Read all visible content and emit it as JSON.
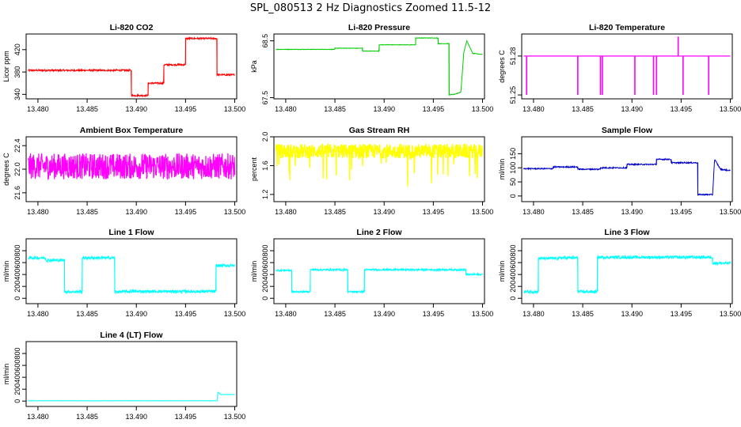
{
  "title": "SPL_080513  2 Hz Diagnostics Zoomed 11.5-12",
  "chart_data": [
    {
      "type": "line",
      "title": "Li-820 CO2",
      "xlabel": "",
      "ylabel": "Licor ppm",
      "color": "#ff0000",
      "xlim": [
        13.4788,
        13.5002
      ],
      "ylim": [
        332,
        448
      ],
      "xticks": [
        13.48,
        13.485,
        13.49,
        13.495,
        13.5
      ],
      "yticks": [
        340,
        380,
        420
      ],
      "noise": 1.5,
      "x": [
        13.479,
        13.4895,
        13.4895,
        13.4912,
        13.4912,
        13.4928,
        13.4928,
        13.495,
        13.495,
        13.4982,
        13.4982,
        13.5
      ],
      "y": [
        383,
        383,
        338,
        338,
        360,
        360,
        393,
        393,
        440,
        440,
        375,
        375
      ]
    },
    {
      "type": "line",
      "title": "Li-820 Pressure",
      "xlabel": "",
      "ylabel": "kPa",
      "color": "#00cc00",
      "xlim": [
        13.4788,
        13.5002
      ],
      "ylim": [
        67.48,
        68.62
      ],
      "xticks": [
        13.48,
        13.485,
        13.49,
        13.495,
        13.5
      ],
      "yticks": [
        67.5,
        68.5
      ],
      "noise": 0.004,
      "x": [
        13.479,
        13.485,
        13.485,
        13.4878,
        13.4878,
        13.4895,
        13.4895,
        13.4932,
        13.4932,
        13.4955,
        13.4955,
        13.4966,
        13.4966,
        13.4972,
        13.4978,
        13.4981,
        13.4984,
        13.499,
        13.5
      ],
      "y": [
        68.35,
        68.35,
        68.37,
        68.37,
        68.32,
        68.32,
        68.43,
        68.43,
        68.55,
        68.55,
        68.45,
        68.45,
        67.55,
        67.56,
        67.6,
        68.3,
        68.5,
        68.28,
        68.26
      ]
    },
    {
      "type": "line",
      "title": "Li-820 Temperature",
      "xlabel": "",
      "ylabel": "degrees C",
      "color": "#ff00ff",
      "xlim": [
        13.4788,
        13.5002
      ],
      "ylim": [
        51.247,
        51.297
      ],
      "xticks": [
        13.48,
        13.485,
        13.49,
        13.495,
        13.5
      ],
      "yticks": [
        51.25,
        51.28
      ],
      "baseline": 51.28,
      "noise": 0,
      "spikes": [
        [
          13.4793,
          51.25
        ],
        [
          13.4845,
          51.25
        ],
        [
          13.4868,
          51.25
        ],
        [
          13.487,
          51.25
        ],
        [
          13.4903,
          51.25
        ],
        [
          13.4922,
          51.25
        ],
        [
          13.4925,
          51.25
        ],
        [
          13.4947,
          51.295
        ],
        [
          13.4952,
          51.25
        ],
        [
          13.4978,
          51.25
        ]
      ]
    },
    {
      "type": "line",
      "title": "Ambient Box Temperature",
      "xlabel": "",
      "ylabel": "degrees C",
      "color": "#ff00ff",
      "xlim": [
        13.4788,
        13.5002
      ],
      "ylim": [
        21.45,
        22.55
      ],
      "xticks": [
        13.48,
        13.485,
        13.49,
        13.495,
        13.5
      ],
      "yticks": [
        21.6,
        22.0,
        22.4
      ],
      "noise": 0.22,
      "x": [
        13.479,
        13.5
      ],
      "y": [
        22.05,
        22.05
      ]
    },
    {
      "type": "line",
      "title": "Gas Stream RH",
      "xlabel": "",
      "ylabel": "percent",
      "color": "#ffff00",
      "xlim": [
        13.4788,
        13.5002
      ],
      "ylim": [
        1.1,
        2.0
      ],
      "xticks": [
        13.48,
        13.485,
        13.49,
        13.495,
        13.5
      ],
      "yticks": [
        1.2,
        1.6,
        2.0
      ],
      "noise": 0.1,
      "dropouts": true,
      "x": [
        13.479,
        13.5
      ],
      "y": [
        1.8,
        1.8
      ]
    },
    {
      "type": "line",
      "title": "Sample Flow",
      "xlabel": "",
      "ylabel": "ml/min",
      "color": "#0000cc",
      "xlim": [
        13.4788,
        13.5002
      ],
      "ylim": [
        -20,
        210
      ],
      "xticks": [
        13.48,
        13.485,
        13.49,
        13.495,
        13.5
      ],
      "yticks": [
        0,
        50,
        100,
        150
      ],
      "noise": 2,
      "x": [
        13.479,
        13.482,
        13.482,
        13.4845,
        13.4845,
        13.4868,
        13.4868,
        13.4895,
        13.4895,
        13.4925,
        13.4925,
        13.494,
        13.494,
        13.4967,
        13.4967,
        13.4982,
        13.4984,
        13.499,
        13.5
      ],
      "y": [
        97,
        97,
        103,
        103,
        95,
        95,
        100,
        100,
        112,
        112,
        130,
        130,
        118,
        118,
        5,
        5,
        130,
        95,
        90
      ]
    },
    {
      "type": "line",
      "title": "Line 1 Flow",
      "xlabel": "",
      "ylabel": "ml/min",
      "color": "#00ffff",
      "xlim": [
        13.4788,
        13.5002
      ],
      "ylim": [
        -90,
        1000
      ],
      "xticks": [
        13.48,
        13.485,
        13.49,
        13.495,
        13.5
      ],
      "yticks": [
        0,
        200,
        400,
        600,
        800
      ],
      "noise": 25,
      "x": [
        13.479,
        13.4808,
        13.4808,
        13.4827,
        13.4827,
        13.4845,
        13.4845,
        13.4878,
        13.4878,
        13.4888,
        13.4888,
        13.4981,
        13.4981,
        13.5
      ],
      "y": [
        680,
        680,
        640,
        640,
        110,
        110,
        680,
        680,
        110,
        110,
        115,
        115,
        550,
        550
      ]
    },
    {
      "type": "line",
      "title": "Line 2 Flow",
      "xlabel": "",
      "ylabel": "ml/min",
      "color": "#00ffff",
      "xlim": [
        13.4788,
        13.5002
      ],
      "ylim": [
        -90,
        1000
      ],
      "xticks": [
        13.48,
        13.485,
        13.49,
        13.495,
        13.5
      ],
      "yticks": [
        0,
        200,
        400,
        600,
        800
      ],
      "noise": 15,
      "x": [
        13.479,
        13.4806,
        13.4806,
        13.4825,
        13.4825,
        13.4863,
        13.4863,
        13.488,
        13.488,
        13.4983,
        13.4983,
        13.5
      ],
      "y": [
        470,
        470,
        110,
        110,
        480,
        480,
        110,
        110,
        480,
        480,
        400,
        400
      ]
    },
    {
      "type": "line",
      "title": "Line 3 Flow",
      "xlabel": "",
      "ylabel": "ml/min",
      "color": "#00ffff",
      "xlim": [
        13.4788,
        13.5002
      ],
      "ylim": [
        -90,
        1000
      ],
      "xticks": [
        13.48,
        13.485,
        13.49,
        13.495,
        13.5
      ],
      "yticks": [
        0,
        200,
        400,
        600,
        800
      ],
      "noise": 25,
      "x": [
        13.479,
        13.4805,
        13.4805,
        13.4827,
        13.4827,
        13.4845,
        13.4845,
        13.4865,
        13.4865,
        13.4982,
        13.4982,
        13.5
      ],
      "y": [
        110,
        110,
        670,
        670,
        680,
        680,
        110,
        110,
        690,
        690,
        590,
        590
      ]
    },
    {
      "type": "line",
      "title": "Line 4 (LT) Flow",
      "xlabel": "",
      "ylabel": "ml/min",
      "color": "#00ffff",
      "xlim": [
        13.4788,
        13.5002
      ],
      "ylim": [
        -90,
        1000
      ],
      "xticks": [
        13.48,
        13.485,
        13.49,
        13.495,
        13.5
      ],
      "yticks": [
        0,
        200,
        400,
        600,
        800
      ],
      "noise": 2,
      "x": [
        13.479,
        13.4982,
        13.4983,
        13.4986,
        13.499,
        13.5
      ],
      "y": [
        5,
        5,
        150,
        110,
        110,
        110
      ]
    }
  ]
}
